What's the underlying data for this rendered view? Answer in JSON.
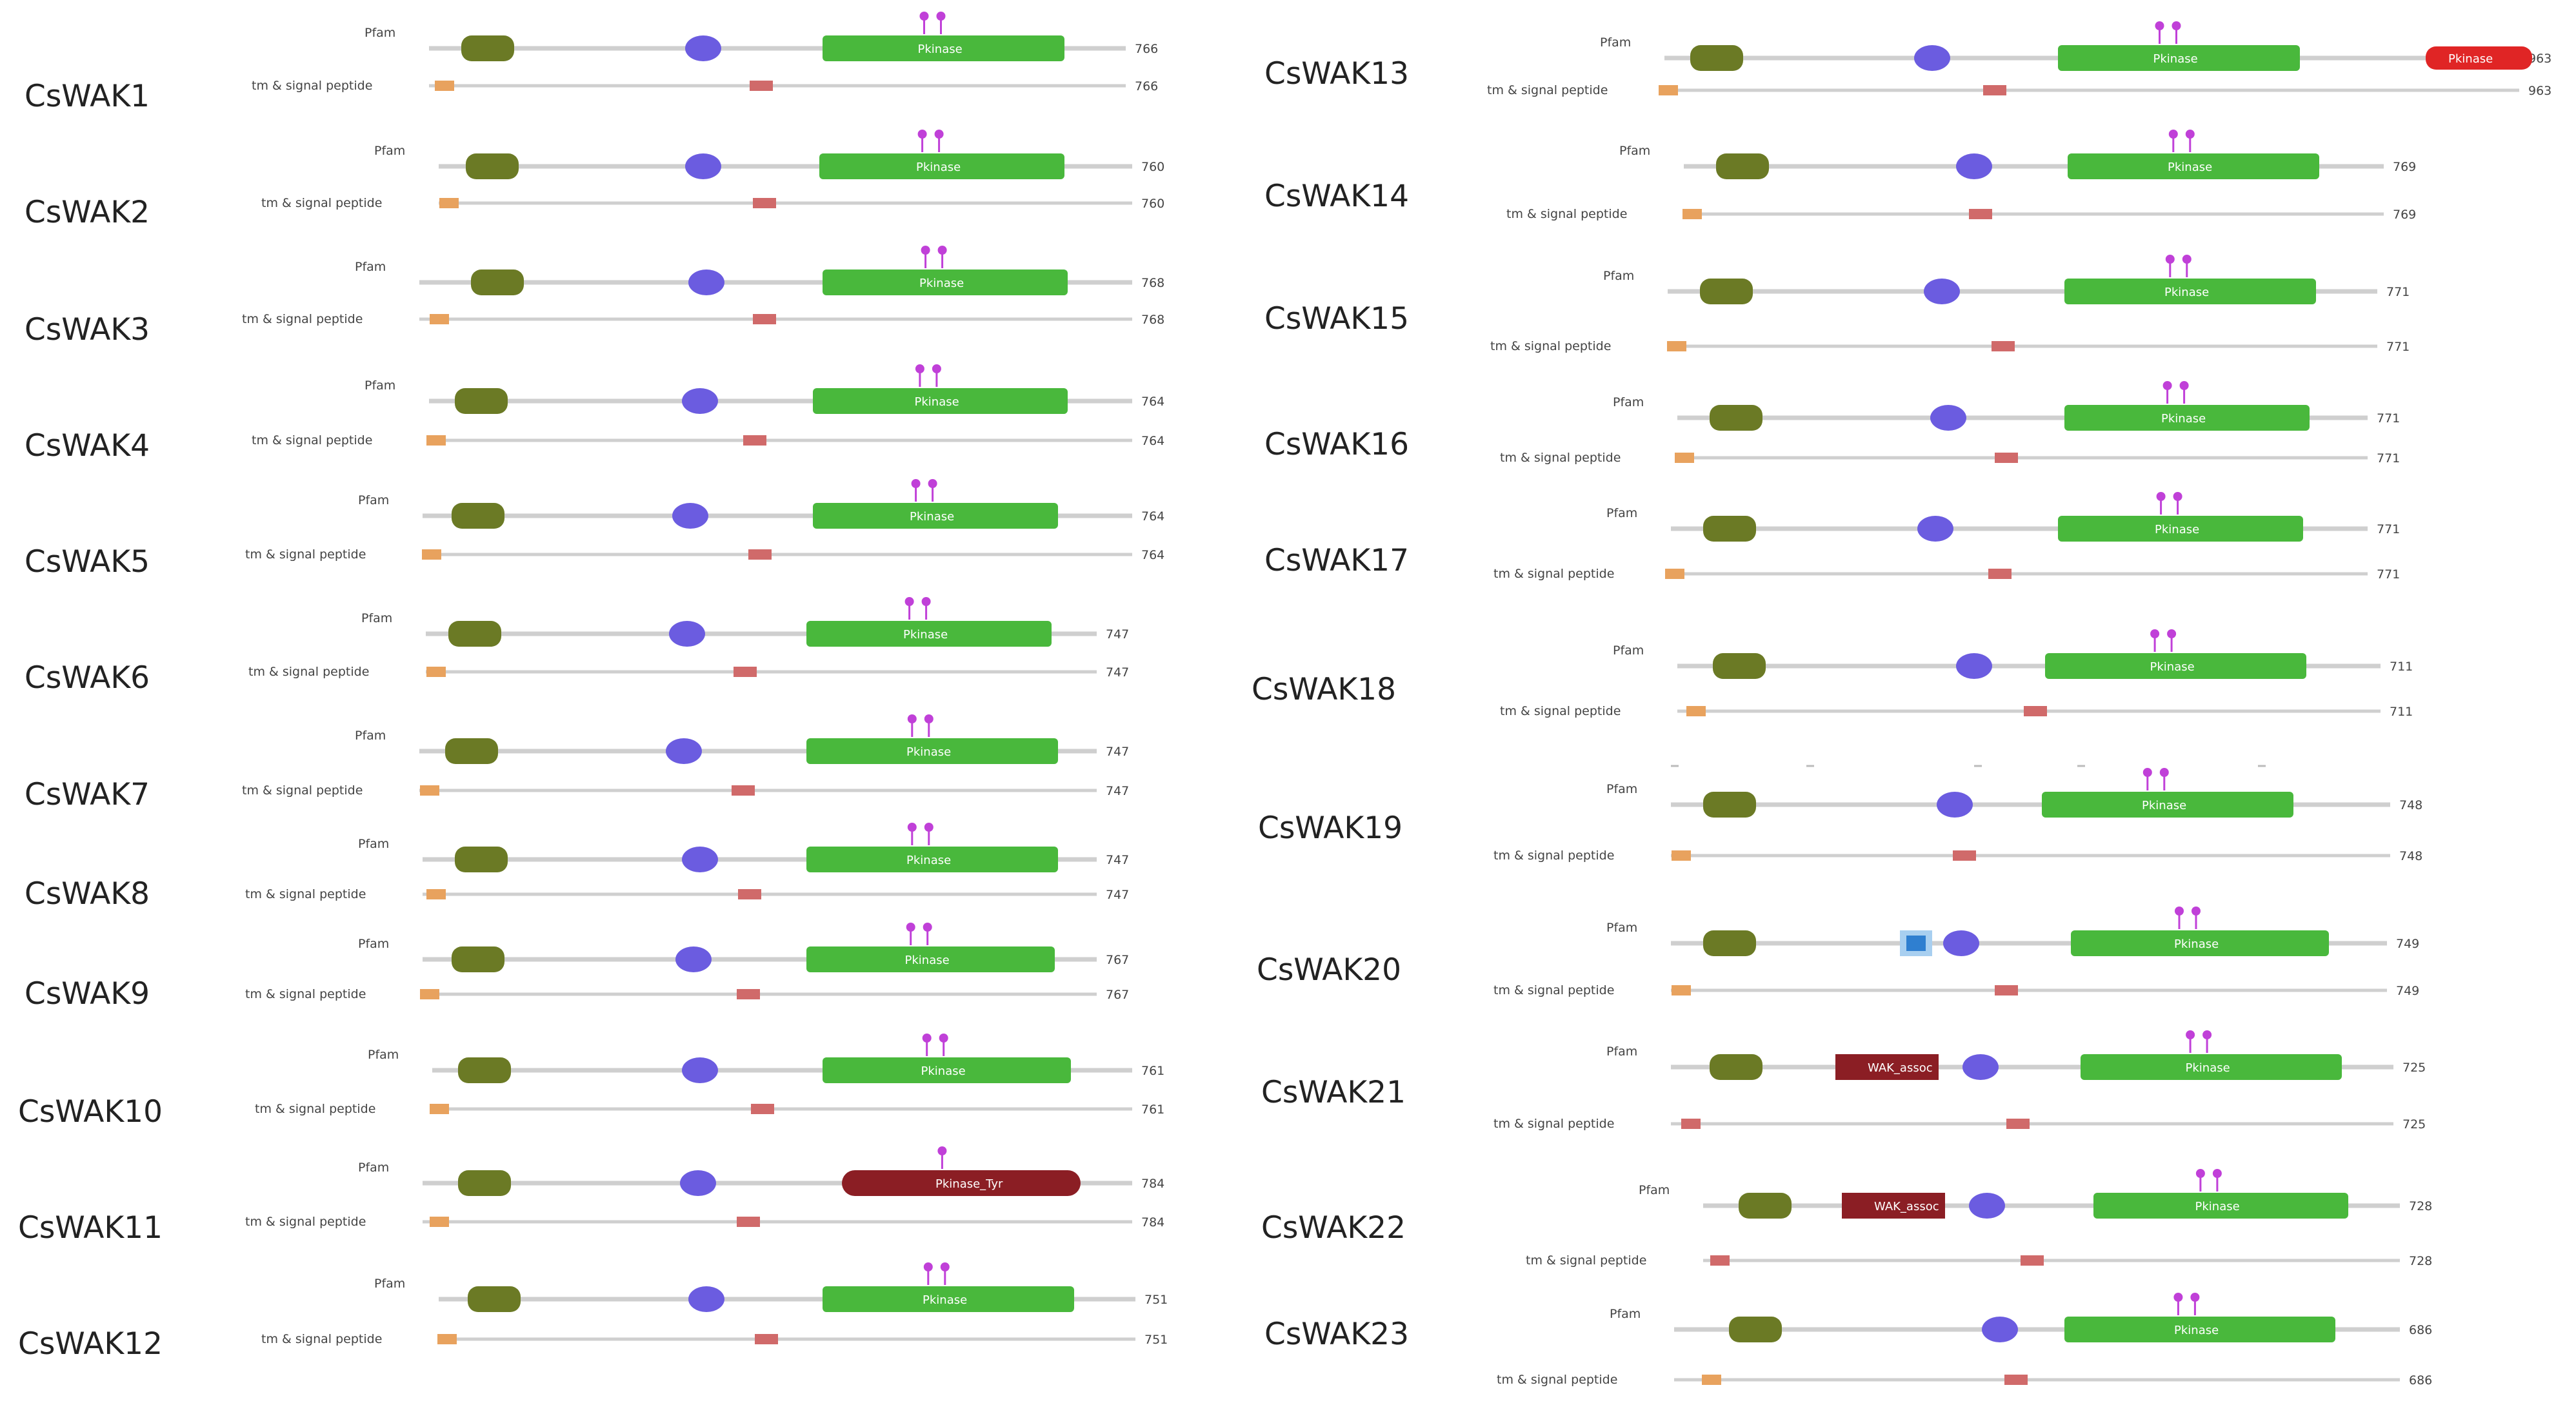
{
  "colors": {
    "backbone": "#cfcfcf",
    "egf": "#6b7a25",
    "galacturonan": "#6b5ce0",
    "pkinase": "#49b83c",
    "pkinase_tyr": "#8b1e24",
    "wall_assoc_kinase": "#8b1e24",
    "extra_red": "#e02525",
    "extra_blue": "#2f7fd0",
    "tm": "#e8a25e",
    "low_complexity": "#d06a6a",
    "phospho_pin": "#c040d8"
  },
  "track_labels": {
    "pfam": "Pfam",
    "tm": "tm & signal peptide"
  },
  "domain_labels": {
    "pkinase": "Pkinase",
    "pkinase_tyr": "Pkinase_Tyr",
    "wak_assoc": "WAK_assoc",
    "extra": "Pkinase"
  },
  "proteins": [
    {
      "name": "CsWAK1",
      "length": "766",
      "kinase": "pkinase",
      "pins": 2
    },
    {
      "name": "CsWAK2",
      "length": "760",
      "kinase": "pkinase",
      "pins": 2
    },
    {
      "name": "CsWAK3",
      "length": "768",
      "kinase": "pkinase",
      "pins": 2
    },
    {
      "name": "CsWAK4",
      "length": "764",
      "kinase": "pkinase",
      "pins": 2
    },
    {
      "name": "CsWAK5",
      "length": "764",
      "kinase": "pkinase",
      "pins": 2
    },
    {
      "name": "CsWAK6",
      "length": "747",
      "kinase": "pkinase",
      "pins": 2
    },
    {
      "name": "CsWAK7",
      "length": "747",
      "kinase": "pkinase",
      "pins": 2
    },
    {
      "name": "CsWAK8",
      "length": "747",
      "kinase": "pkinase",
      "pins": 2
    },
    {
      "name": "CsWAK9",
      "length": "767",
      "kinase": "pkinase",
      "pins": 2
    },
    {
      "name": "CsWAK10",
      "length": "761",
      "kinase": "pkinase",
      "pins": 2
    },
    {
      "name": "CsWAK11",
      "length": "784",
      "kinase": "pkinase_tyr",
      "pins": 1
    },
    {
      "name": "CsWAK12",
      "length": "751",
      "kinase": "pkinase",
      "pins": 2
    },
    {
      "name": "CsWAK13",
      "length": "963",
      "kinase": "pkinase",
      "pins": 2,
      "extra": true
    },
    {
      "name": "CsWAK14",
      "length": "769",
      "kinase": "pkinase",
      "pins": 2
    },
    {
      "name": "CsWAK15",
      "length": "771",
      "kinase": "pkinase",
      "pins": 2
    },
    {
      "name": "CsWAK16",
      "length": "771",
      "kinase": "pkinase",
      "pins": 2
    },
    {
      "name": "CsWAK17",
      "length": "771",
      "kinase": "pkinase",
      "pins": 2
    },
    {
      "name": "CsWAK18",
      "length": "711",
      "kinase": "pkinase",
      "pins": 2
    },
    {
      "name": "CsWAK19",
      "length": "748",
      "kinase": "pkinase",
      "pins": 2
    },
    {
      "name": "CsWAK20",
      "length": "749",
      "kinase": "pkinase",
      "pins": 2,
      "blue": true
    },
    {
      "name": "CsWAK21",
      "length": "725",
      "kinase": "pkinase",
      "pins": 2,
      "wak_assoc": true
    },
    {
      "name": "CsWAK22",
      "length": "728",
      "kinase": "pkinase",
      "pins": 2,
      "wak_assoc": true
    },
    {
      "name": "CsWAK23",
      "length": "686",
      "kinase": "pkinase",
      "pins": 2
    }
  ]
}
